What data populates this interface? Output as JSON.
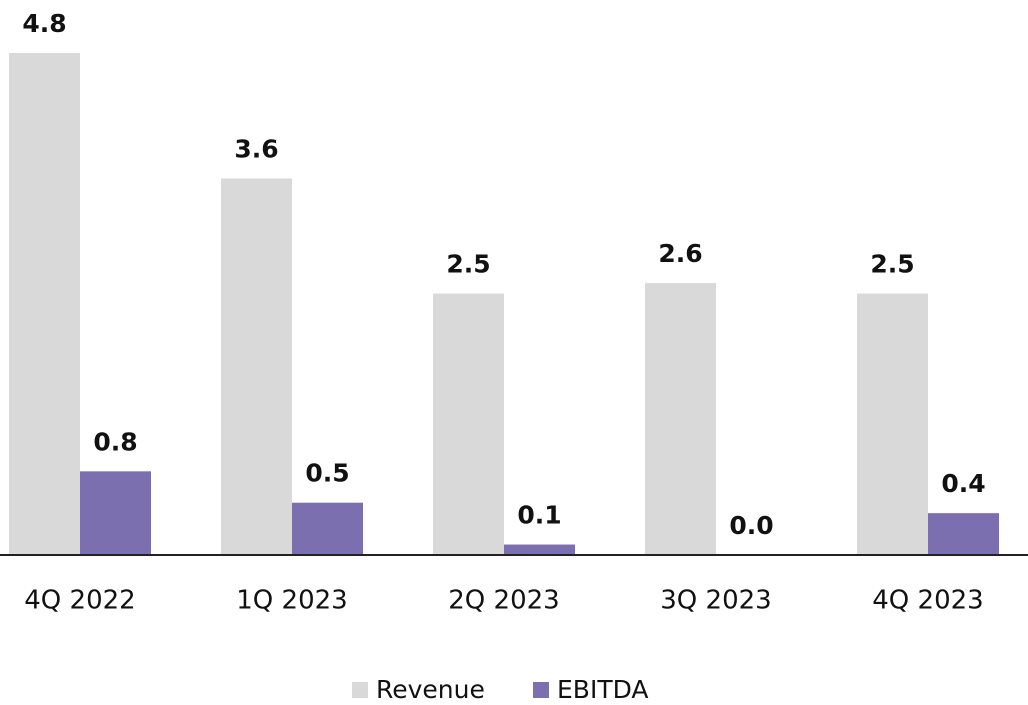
{
  "chart_data": {
    "type": "bar",
    "categories": [
      "4Q 2022",
      "1Q 2023",
      "2Q 2023",
      "3Q 2023",
      "4Q 2023"
    ],
    "series": [
      {
        "name": "Revenue",
        "color": "#d9d9d9",
        "values": [
          4.8,
          3.6,
          2.5,
          2.6,
          2.5
        ],
        "value_labels": [
          "4.8",
          "3.6",
          "2.5",
          "2.6",
          "2.5"
        ]
      },
      {
        "name": "EBITDA",
        "color": "#7b6fb0",
        "values": [
          0.8,
          0.5,
          0.1,
          0.0,
          0.4
        ],
        "value_labels": [
          "0.8",
          "0.5",
          "0.1",
          "0.0",
          "0.4"
        ]
      }
    ]
  }
}
